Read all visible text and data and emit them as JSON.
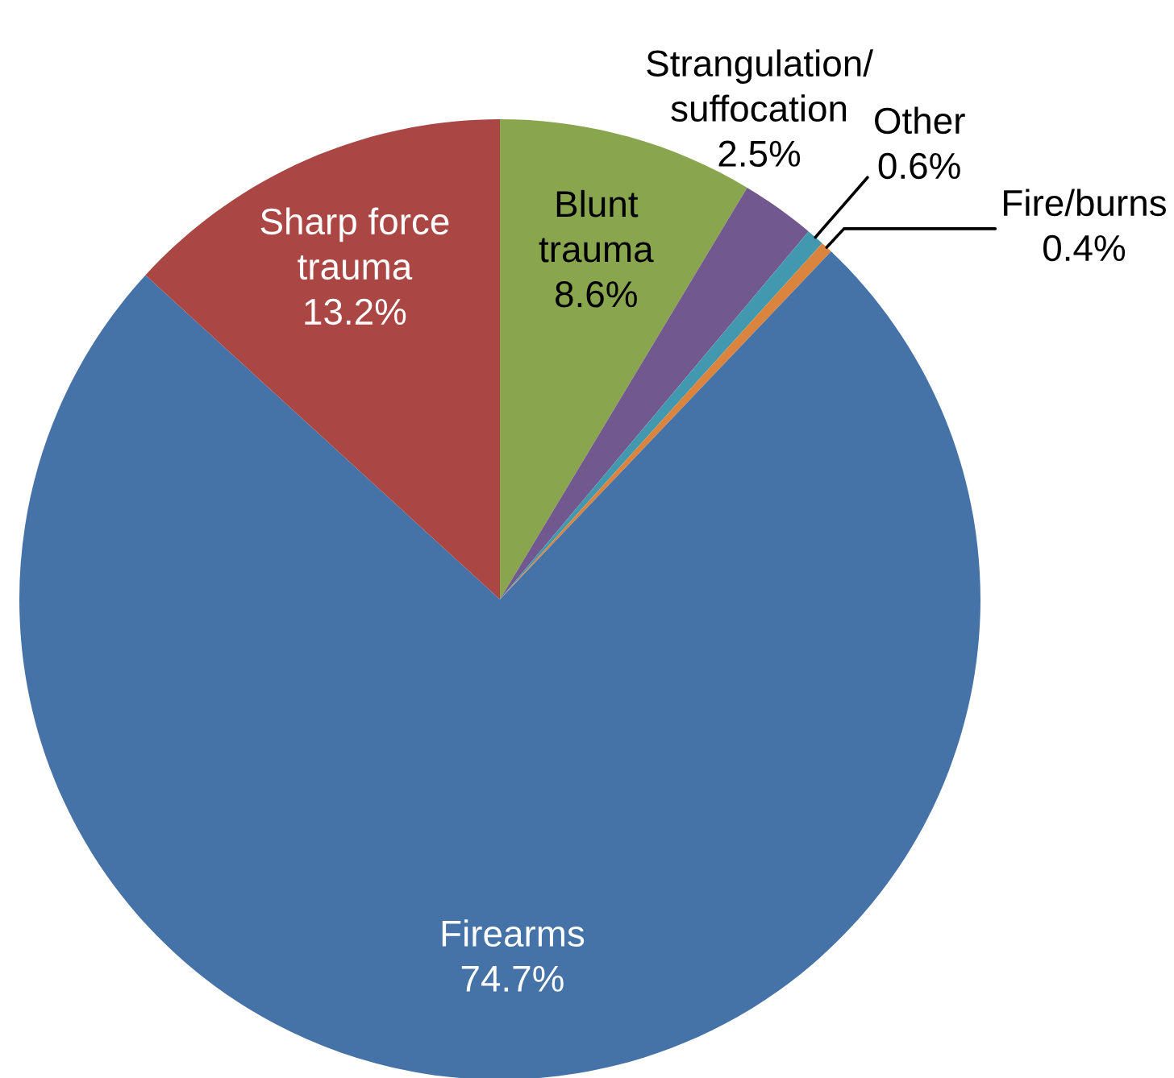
{
  "chart_data": {
    "type": "pie",
    "categories": [
      "Blunt\ntrauma",
      "Strangulation/\nsuffocation",
      "Other",
      "Fire/burns",
      "Firearms",
      "Sharp force\ntrauma"
    ],
    "values": [
      8.6,
      2.5,
      0.6,
      0.4,
      74.7,
      13.2
    ],
    "colors": [
      "#89a54e",
      "#71588f",
      "#4198af",
      "#db843d",
      "#4572a7",
      "#aa4643"
    ],
    "value_labels": [
      "8.6%",
      "2.5%",
      "0.6%",
      "0.4%",
      "74.7%",
      "13.2%"
    ]
  }
}
